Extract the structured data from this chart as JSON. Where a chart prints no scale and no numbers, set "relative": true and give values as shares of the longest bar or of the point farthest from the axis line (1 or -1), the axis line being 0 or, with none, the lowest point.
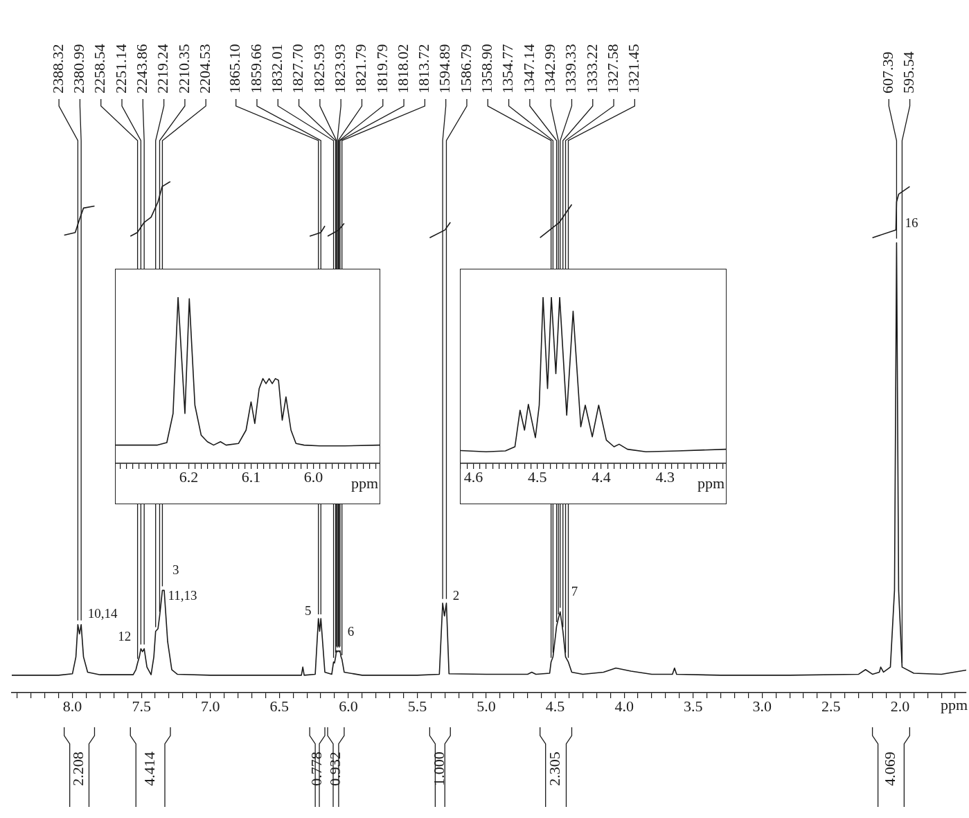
{
  "chart_data": [
    {
      "type": "line",
      "relative": true,
      "xlabel": "ppm",
      "xlim": [
        8.44,
        1.52
      ],
      "xticks": [
        {
          "value": 8.4,
          "label": null
        },
        {
          "value": 8.3,
          "label": null
        },
        {
          "value": 8.2,
          "label": null
        },
        {
          "value": 8.1,
          "label": null
        },
        {
          "value": 8.0,
          "label": "8.0"
        },
        {
          "value": 7.9,
          "label": null
        },
        {
          "value": 7.8,
          "label": null
        },
        {
          "value": 7.7,
          "label": null
        },
        {
          "value": 7.6,
          "label": null
        },
        {
          "value": 7.5,
          "label": "7.5"
        },
        {
          "value": 7.4,
          "label": null
        },
        {
          "value": 7.3,
          "label": null
        },
        {
          "value": 7.2,
          "label": null
        },
        {
          "value": 7.1,
          "label": null
        },
        {
          "value": 7.0,
          "label": "7.0"
        },
        {
          "value": 6.9,
          "label": null
        },
        {
          "value": 6.8,
          "label": null
        },
        {
          "value": 6.7,
          "label": null
        },
        {
          "value": 6.6,
          "label": null
        },
        {
          "value": 6.5,
          "label": "6.5"
        },
        {
          "value": 6.4,
          "label": null
        },
        {
          "value": 6.3,
          "label": null
        },
        {
          "value": 6.2,
          "label": null
        },
        {
          "value": 6.1,
          "label": null
        },
        {
          "value": 6.0,
          "label": "6.0"
        },
        {
          "value": 5.9,
          "label": null
        },
        {
          "value": 5.8,
          "label": null
        },
        {
          "value": 5.7,
          "label": null
        },
        {
          "value": 5.6,
          "label": null
        },
        {
          "value": 5.5,
          "label": "5.5"
        },
        {
          "value": 5.4,
          "label": null
        },
        {
          "value": 5.3,
          "label": null
        },
        {
          "value": 5.2,
          "label": null
        },
        {
          "value": 5.1,
          "label": null
        },
        {
          "value": 5.0,
          "label": "5.0"
        },
        {
          "value": 4.9,
          "label": null
        },
        {
          "value": 4.8,
          "label": null
        },
        {
          "value": 4.7,
          "label": null
        },
        {
          "value": 4.6,
          "label": null
        },
        {
          "value": 4.5,
          "label": "4.5"
        },
        {
          "value": 4.4,
          "label": null
        },
        {
          "value": 4.3,
          "label": null
        },
        {
          "value": 4.2,
          "label": null
        },
        {
          "value": 4.1,
          "label": null
        },
        {
          "value": 4.0,
          "label": "4.0"
        },
        {
          "value": 3.9,
          "label": null
        },
        {
          "value": 3.8,
          "label": null
        },
        {
          "value": 3.7,
          "label": null
        },
        {
          "value": 3.6,
          "label": null
        },
        {
          "value": 3.5,
          "label": "3.5"
        },
        {
          "value": 3.4,
          "label": null
        },
        {
          "value": 3.3,
          "label": null
        },
        {
          "value": 3.2,
          "label": null
        },
        {
          "value": 3.1,
          "label": null
        },
        {
          "value": 3.0,
          "label": "3.0"
        },
        {
          "value": 2.9,
          "label": null
        },
        {
          "value": 2.8,
          "label": null
        },
        {
          "value": 2.7,
          "label": null
        },
        {
          "value": 2.6,
          "label": null
        },
        {
          "value": 2.5,
          "label": "2.5"
        },
        {
          "value": 2.4,
          "label": null
        },
        {
          "value": 2.3,
          "label": null
        },
        {
          "value": 2.2,
          "label": null
        },
        {
          "value": 2.1,
          "label": null
        },
        {
          "value": 2.0,
          "label": "2.0"
        },
        {
          "value": 1.9,
          "label": null
        },
        {
          "value": 1.8,
          "label": null
        },
        {
          "value": 1.7,
          "label": null
        },
        {
          "value": 1.6,
          "label": null
        }
      ],
      "series": [
        {
          "color": "#1a1a1a",
          "x": [
            8.44,
            8.1,
            8.0,
            7.975,
            7.961,
            7.949,
            7.937,
            7.92,
            7.89,
            7.8,
            7.56,
            7.54,
            7.528,
            7.515,
            7.504,
            7.492,
            7.48,
            7.46,
            7.43,
            7.41,
            7.397,
            7.38,
            7.368,
            7.348,
            7.335,
            7.31,
            7.28,
            7.24,
            7.0,
            6.5,
            6.34,
            6.33,
            6.32,
            6.24,
            6.217,
            6.208,
            6.199,
            6.17,
            6.12,
            6.107,
            6.1,
            6.092,
            6.086,
            6.08,
            6.073,
            6.066,
            6.06,
            6.053,
            6.046,
            6.03,
            5.9,
            5.5,
            5.34,
            5.316,
            5.303,
            5.289,
            5.27,
            5.0,
            4.7,
            4.67,
            4.64,
            4.54,
            4.53,
            4.516,
            4.49,
            4.477,
            4.464,
            4.444,
            4.425,
            4.405,
            4.38,
            4.3,
            4.15,
            4.06,
            3.95,
            3.8,
            3.65,
            3.635,
            3.62,
            3.3,
            2.8,
            2.3,
            2.25,
            2.2,
            2.15,
            2.14,
            2.12,
            2.07,
            2.04,
            2.025,
            2.01,
            1.985,
            1.9,
            1.7,
            1.52
          ],
          "values": [
            0.034,
            0.034,
            0.037,
            0.07,
            0.133,
            0.115,
            0.133,
            0.07,
            0.04,
            0.035,
            0.035,
            0.045,
            0.058,
            0.07,
            0.086,
            0.08,
            0.086,
            0.05,
            0.035,
            0.07,
            0.12,
            0.125,
            0.15,
            0.2,
            0.2,
            0.1,
            0.045,
            0.036,
            0.034,
            0.034,
            0.034,
            0.05,
            0.034,
            0.036,
            0.145,
            0.12,
            0.145,
            0.04,
            0.036,
            0.06,
            0.058,
            0.07,
            0.082,
            0.08,
            0.082,
            0.08,
            0.082,
            0.07,
            0.065,
            0.04,
            0.034,
            0.034,
            0.036,
            0.175,
            0.15,
            0.175,
            0.037,
            0.036,
            0.036,
            0.04,
            0.036,
            0.038,
            0.06,
            0.07,
            0.13,
            0.145,
            0.158,
            0.12,
            0.07,
            0.06,
            0.04,
            0.036,
            0.04,
            0.048,
            0.042,
            0.036,
            0.036,
            0.048,
            0.036,
            0.034,
            0.034,
            0.036,
            0.045,
            0.036,
            0.04,
            0.05,
            0.04,
            0.05,
            0.2,
            0.88,
            0.2,
            0.05,
            0.038,
            0.036,
            0.044
          ]
        },
        {
          "color": "#1a1a1a",
          "x": [
            8.06,
            7.98,
            7.95,
            7.92,
            7.84,
            7.7,
            7.58,
            7.53,
            7.48,
            7.43,
            7.38,
            7.35,
            7.29,
            6.5,
            6.28,
            6.2,
            6.17,
            6.16,
            6.15,
            6.07,
            6.03,
            5.6,
            5.41,
            5.3,
            5.26,
            4.9,
            4.61,
            4.47,
            4.38,
            3.0,
            2.2,
            2.03,
            2.025,
            2.01,
            1.93
          ],
          "values": [
            0.895,
            0.9,
            0.925,
            0.948,
            0.952,
            null,
            0.893,
            0.9,
            0.92,
            0.93,
            0.96,
            0.99,
            1.0,
            null,
            0.893,
            0.9,
            0.913,
            null,
            0.893,
            0.905,
            0.918,
            null,
            0.89,
            0.905,
            0.92,
            null,
            0.89,
            0.92,
            0.955,
            null,
            0.89,
            0.905,
            0.96,
            0.975,
            0.99
          ]
        }
      ],
      "annotations": [
        {
          "text": "10,14",
          "x": 7.949,
          "y": 0.115
        },
        {
          "text": "11,13",
          "x": 7.368,
          "y": 0.15
        },
        {
          "text": "3",
          "x": 7.335,
          "y": 0.2
        },
        {
          "text": "12",
          "x": 7.515,
          "y": 0.07
        },
        {
          "text": "5",
          "x": 6.208,
          "y": 0.12
        },
        {
          "text": "6",
          "x": 6.066,
          "y": 0.08
        },
        {
          "text": "2",
          "x": 5.303,
          "y": 0.15
        },
        {
          "text": "7",
          "x": 4.464,
          "y": 0.158
        },
        {
          "text": "16",
          "x": 2.025,
          "y": 0.88
        },
        {
          "text": "2388.32",
          "x": 7.961,
          "y": 0.133
        },
        {
          "text": "2380.99",
          "x": 7.937,
          "y": 0.133
        },
        {
          "text": "2258.54",
          "x": 7.528,
          "y": 0.058
        },
        {
          "text": "2251.14",
          "x": 7.504,
          "y": 0.086
        },
        {
          "text": "2243.86",
          "x": 7.48,
          "y": 0.086
        },
        {
          "text": "2219.24",
          "x": 7.397,
          "y": 0.12
        },
        {
          "text": "2210.35",
          "x": 7.368,
          "y": 0.15
        },
        {
          "text": "2204.53",
          "x": 7.348,
          "y": 0.2
        },
        {
          "text": "1865.10",
          "x": 6.217,
          "y": 0.145
        },
        {
          "text": "1859.66",
          "x": 6.199,
          "y": 0.145
        },
        {
          "text": "1832.01",
          "x": 6.107,
          "y": 0.06
        },
        {
          "text": "1827.70",
          "x": 6.092,
          "y": 0.07
        },
        {
          "text": "1825.93",
          "x": 6.086,
          "y": 0.082
        },
        {
          "text": "1823.93",
          "x": 6.08,
          "y": 0.08
        },
        {
          "text": "1821.79",
          "x": 6.073,
          "y": 0.082
        },
        {
          "text": "1819.79",
          "x": 6.066,
          "y": 0.08
        },
        {
          "text": "1818.02",
          "x": 6.06,
          "y": 0.082
        },
        {
          "text": "1813.72",
          "x": 6.046,
          "y": 0.065
        },
        {
          "text": "1594.89",
          "x": 5.316,
          "y": 0.175
        },
        {
          "text": "1586.79",
          "x": 5.289,
          "y": 0.175
        },
        {
          "text": "1358.90",
          "x": 4.53,
          "y": 0.06
        },
        {
          "text": "1354.77",
          "x": 4.516,
          "y": 0.07
        },
        {
          "text": "1347.14",
          "x": 4.49,
          "y": 0.13
        },
        {
          "text": "1342.99",
          "x": 4.477,
          "y": 0.145
        },
        {
          "text": "1339.33",
          "x": 4.464,
          "y": 0.158
        },
        {
          "text": "1333.22",
          "x": 4.444,
          "y": 0.12
        },
        {
          "text": "1327.58",
          "x": 4.425,
          "y": 0.07
        },
        {
          "text": "1321.45",
          "x": 4.405,
          "y": 0.06
        },
        {
          "text": "607.39",
          "x": 2.025,
          "y": 0.88
        },
        {
          "text": "595.54",
          "x": 1.985,
          "y": 0.05
        },
        "2.208",
        "4.414",
        "0.778",
        "0.932",
        "1.000",
        "2.305",
        "4.069"
      ]
    },
    {
      "type": "line",
      "relative": true,
      "xlabel": "ppm",
      "xlim": [
        6.317,
        5.894
      ],
      "xticks": [
        {
          "value": 6.31,
          "label": null
        },
        {
          "value": 6.3,
          "label": null
        },
        {
          "value": 6.29,
          "label": null
        },
        {
          "value": 6.28,
          "label": null
        },
        {
          "value": 6.27,
          "label": null
        },
        {
          "value": 6.26,
          "label": null
        },
        {
          "value": 6.25,
          "label": null
        },
        {
          "value": 6.24,
          "label": null
        },
        {
          "value": 6.23,
          "label": null
        },
        {
          "value": 6.22,
          "label": null
        },
        {
          "value": 6.2,
          "label": "6.2"
        },
        {
          "value": 6.19,
          "label": null
        },
        {
          "value": 6.18,
          "label": null
        },
        {
          "value": 6.17,
          "label": null
        },
        {
          "value": 6.16,
          "label": null
        },
        {
          "value": 6.15,
          "label": null
        },
        {
          "value": 6.14,
          "label": null
        },
        {
          "value": 6.13,
          "label": null
        },
        {
          "value": 6.12,
          "label": null
        },
        {
          "value": 6.11,
          "label": null
        },
        {
          "value": 6.1,
          "label": "6.1"
        },
        {
          "value": 6.09,
          "label": null
        },
        {
          "value": 6.08,
          "label": null
        },
        {
          "value": 6.07,
          "label": null
        },
        {
          "value": 6.06,
          "label": null
        },
        {
          "value": 6.05,
          "label": null
        },
        {
          "value": 6.04,
          "label": null
        },
        {
          "value": 6.03,
          "label": null
        },
        {
          "value": 6.02,
          "label": null
        },
        {
          "value": 6.01,
          "label": null
        },
        {
          "value": 6.0,
          "label": "6.0"
        },
        {
          "value": 5.99,
          "label": null
        },
        {
          "value": 5.98,
          "label": null
        },
        {
          "value": 5.97,
          "label": null
        },
        {
          "value": 5.96,
          "label": null
        },
        {
          "value": 5.95,
          "label": null
        },
        {
          "value": 5.94,
          "label": null
        },
        {
          "value": 5.93,
          "label": null
        },
        {
          "value": 5.92,
          "label": null
        },
        {
          "value": 5.91,
          "label": null
        },
        {
          "value": 5.9,
          "label": null
        }
      ],
      "series": [
        {
          "color": "#1a1a1a",
          "x": [
            6.317,
            6.28,
            6.25,
            6.235,
            6.225,
            6.217,
            6.206,
            6.199,
            6.19,
            6.18,
            6.17,
            6.16,
            6.149,
            6.14,
            6.12,
            6.108,
            6.1,
            6.094,
            6.087,
            6.081,
            6.076,
            6.071,
            6.066,
            6.061,
            6.056,
            6.05,
            6.044,
            6.036,
            6.028,
            6.015,
            5.99,
            5.95,
            5.894
          ],
          "values": [
            0.11,
            0.11,
            0.11,
            0.125,
            0.3,
            1.0,
            0.3,
            0.99,
            0.35,
            0.17,
            0.13,
            0.11,
            0.13,
            0.11,
            0.12,
            0.2,
            0.37,
            0.24,
            0.45,
            0.51,
            0.48,
            0.51,
            0.48,
            0.51,
            0.5,
            0.26,
            0.4,
            0.2,
            0.12,
            0.11,
            0.105,
            0.105,
            0.11
          ]
        }
      ]
    },
    {
      "type": "line",
      "relative": true,
      "xlabel": "ppm",
      "xlim": [
        4.62,
        4.205
      ],
      "xticks": [
        {
          "value": 4.62,
          "label": null
        },
        {
          "value": 4.61,
          "label": null
        },
        {
          "value": 4.6,
          "label": "4.6"
        },
        {
          "value": 4.59,
          "label": null
        },
        {
          "value": 4.58,
          "label": null
        },
        {
          "value": 4.57,
          "label": null
        },
        {
          "value": 4.56,
          "label": null
        },
        {
          "value": 4.55,
          "label": null
        },
        {
          "value": 4.54,
          "label": null
        },
        {
          "value": 4.53,
          "label": null
        },
        {
          "value": 4.52,
          "label": null
        },
        {
          "value": 4.51,
          "label": null
        },
        {
          "value": 4.5,
          "label": "4.5"
        },
        {
          "value": 4.49,
          "label": null
        },
        {
          "value": 4.48,
          "label": null
        },
        {
          "value": 4.47,
          "label": null
        },
        {
          "value": 4.46,
          "label": null
        },
        {
          "value": 4.45,
          "label": null
        },
        {
          "value": 4.44,
          "label": null
        },
        {
          "value": 4.43,
          "label": null
        },
        {
          "value": 4.42,
          "label": null
        },
        {
          "value": 4.41,
          "label": null
        },
        {
          "value": 4.4,
          "label": "4.4"
        },
        {
          "value": 4.39,
          "label": null
        },
        {
          "value": 4.38,
          "label": null
        },
        {
          "value": 4.37,
          "label": null
        },
        {
          "value": 4.36,
          "label": null
        },
        {
          "value": 4.35,
          "label": null
        },
        {
          "value": 4.34,
          "label": null
        },
        {
          "value": 4.33,
          "label": null
        },
        {
          "value": 4.32,
          "label": null
        },
        {
          "value": 4.31,
          "label": null
        },
        {
          "value": 4.3,
          "label": "4.3"
        },
        {
          "value": 4.29,
          "label": null
        },
        {
          "value": 4.28,
          "label": null
        },
        {
          "value": 4.27,
          "label": null
        },
        {
          "value": 4.26,
          "label": null
        },
        {
          "value": 4.25,
          "label": null
        },
        {
          "value": 4.24,
          "label": null
        },
        {
          "value": 4.23,
          "label": null
        },
        {
          "value": 4.22,
          "label": null
        },
        {
          "value": 4.21,
          "label": null
        }
      ],
      "series": [
        {
          "color": "#1a1a1a",
          "x": [
            4.62,
            4.58,
            4.55,
            4.535,
            4.527,
            4.52,
            4.514,
            4.503,
            4.497,
            4.491,
            4.484,
            4.478,
            4.471,
            4.465,
            4.454,
            4.444,
            4.432,
            4.425,
            4.414,
            4.404,
            4.392,
            4.38,
            4.372,
            4.359,
            4.33,
            4.28,
            4.205
          ],
          "values": [
            0.077,
            0.07,
            0.075,
            0.1,
            0.32,
            0.2,
            0.355,
            0.155,
            0.35,
            1.0,
            0.45,
            1.0,
            0.54,
            1.0,
            0.29,
            0.915,
            0.22,
            0.35,
            0.16,
            0.35,
            0.14,
            0.1,
            0.115,
            0.085,
            0.07,
            0.075,
            0.085
          ]
        }
      ]
    }
  ]
}
